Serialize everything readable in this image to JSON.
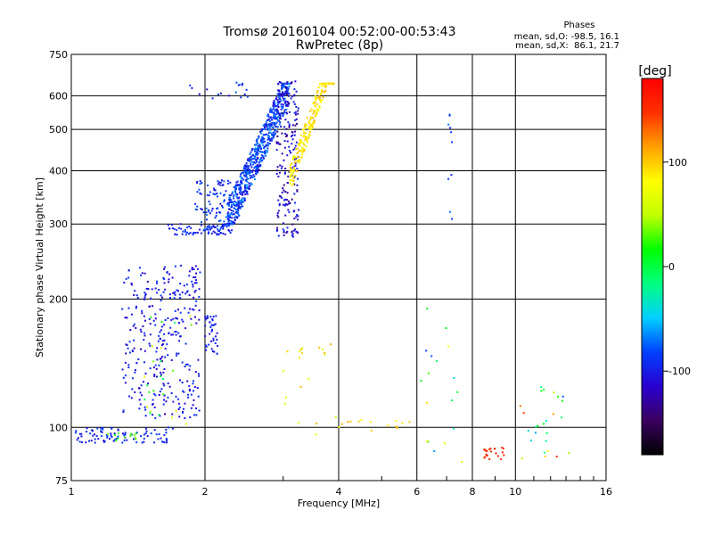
{
  "chart_data": {
    "type": "scatter",
    "title": "Tromsø 20160104 00:52:00-00:53:43",
    "subtitle": "RwPretec (8p)",
    "stats": {
      "heading": "Phases",
      "line1": "mean, sd,O: -98.5, 16.1",
      "line2": "mean, sd,X:  86.1, 21.7"
    },
    "xlabel": "Frequency [MHz]",
    "ylabel": "Stationary phase Virtual Height [km]",
    "x_scale": "log",
    "y_scale": "log",
    "xlim": [
      1,
      16
    ],
    "ylim": [
      75,
      750
    ],
    "x_ticks": [
      1,
      2,
      4,
      6,
      8,
      10,
      16
    ],
    "y_ticks": [
      75,
      100,
      200,
      300,
      400,
      500,
      600,
      750
    ],
    "grid": true,
    "colorbar": {
      "label": "[deg]",
      "range": [
        -180,
        180
      ],
      "ticks": [
        -100,
        0,
        100
      ],
      "colormap": [
        "#000000",
        "#3a0060",
        "#2a00d0",
        "#0040ff",
        "#00d0ff",
        "#00ff80",
        "#00ff00",
        "#c0ff00",
        "#ffff00",
        "#ffa000",
        "#ff3000",
        "#ff0000"
      ]
    },
    "clusters": [
      {
        "name": "low-F-floor",
        "f": [
          1.02,
          1.7
        ],
        "h": [
          92,
          100
        ],
        "phase": [
          -110,
          -80
        ],
        "n": 90
      },
      {
        "name": "low-F-floor-green",
        "f": [
          1.2,
          1.4
        ],
        "h": [
          93,
          97
        ],
        "phase": [
          10,
          40
        ],
        "n": 12
      },
      {
        "name": "spread-200",
        "f": [
          1.3,
          1.95
        ],
        "h": [
          105,
          240
        ],
        "phase": [
          -120,
          -85
        ],
        "n": 320
      },
      {
        "name": "spread-200-mixed",
        "f": [
          1.45,
          1.9
        ],
        "h": [
          100,
          190
        ],
        "phase": [
          -20,
          90
        ],
        "n": 25
      },
      {
        "name": "cluster-170",
        "f": [
          2.0,
          2.15
        ],
        "h": [
          148,
          185
        ],
        "phase": [
          -110,
          -85
        ],
        "n": 40
      },
      {
        "name": "F-bottom",
        "f": [
          1.65,
          2.3
        ],
        "h": [
          283,
          300
        ],
        "phase": [
          -110,
          -80
        ],
        "n": 70
      },
      {
        "name": "F-low-cloud",
        "f": [
          1.9,
          2.4
        ],
        "h": [
          290,
          380
        ],
        "phase": [
          -110,
          -70
        ],
        "n": 110
      },
      {
        "name": "F-trace-band",
        "f": [
          2.25,
          3.1
        ],
        "h": [
          300,
          640
        ],
        "phase": [
          -110,
          -60
        ],
        "n": 650
      },
      {
        "name": "F-trace-upper",
        "f": [
          2.9,
          3.25
        ],
        "h": [
          280,
          650
        ],
        "phase": [
          -140,
          -90
        ],
        "n": 200
      },
      {
        "name": "X-trace-yellow",
        "f": [
          3.1,
          3.9
        ],
        "h": [
          370,
          640
        ],
        "phase": [
          70,
          110
        ],
        "n": 260
      },
      {
        "name": "top-scatter",
        "f": [
          1.85,
          2.5
        ],
        "h": [
          590,
          650
        ],
        "phase": [
          -110,
          -70
        ],
        "n": 18
      },
      {
        "name": "sporadic-high-F",
        "f": [
          3.0,
          4.0
        ],
        "h": [
          95,
          160
        ],
        "phase": [
          50,
          110
        ],
        "n": 20
      },
      {
        "name": "mid-100-yellow",
        "f": [
          4.0,
          5.8
        ],
        "h": [
          98,
          104
        ],
        "phase": [
          80,
          110
        ],
        "n": 14
      },
      {
        "name": "vertical-7p1",
        "f": [
          7.05,
          7.2
        ],
        "h": [
          290,
          560
        ],
        "phase": [
          -100,
          -60
        ],
        "n": 10
      },
      {
        "name": "sparse-6to8",
        "f": [
          6.1,
          7.6
        ],
        "h": [
          76,
          190
        ],
        "phase": [
          -100,
          100
        ],
        "n": 18
      },
      {
        "name": "red-9MHz",
        "f": [
          8.5,
          9.5
        ],
        "h": [
          84,
          90
        ],
        "phase": [
          140,
          170
        ],
        "n": 22
      },
      {
        "name": "sparse-10to14",
        "f": [
          10.2,
          13.5
        ],
        "h": [
          84,
          125
        ],
        "phase": [
          -100,
          160
        ],
        "n": 26
      }
    ]
  }
}
